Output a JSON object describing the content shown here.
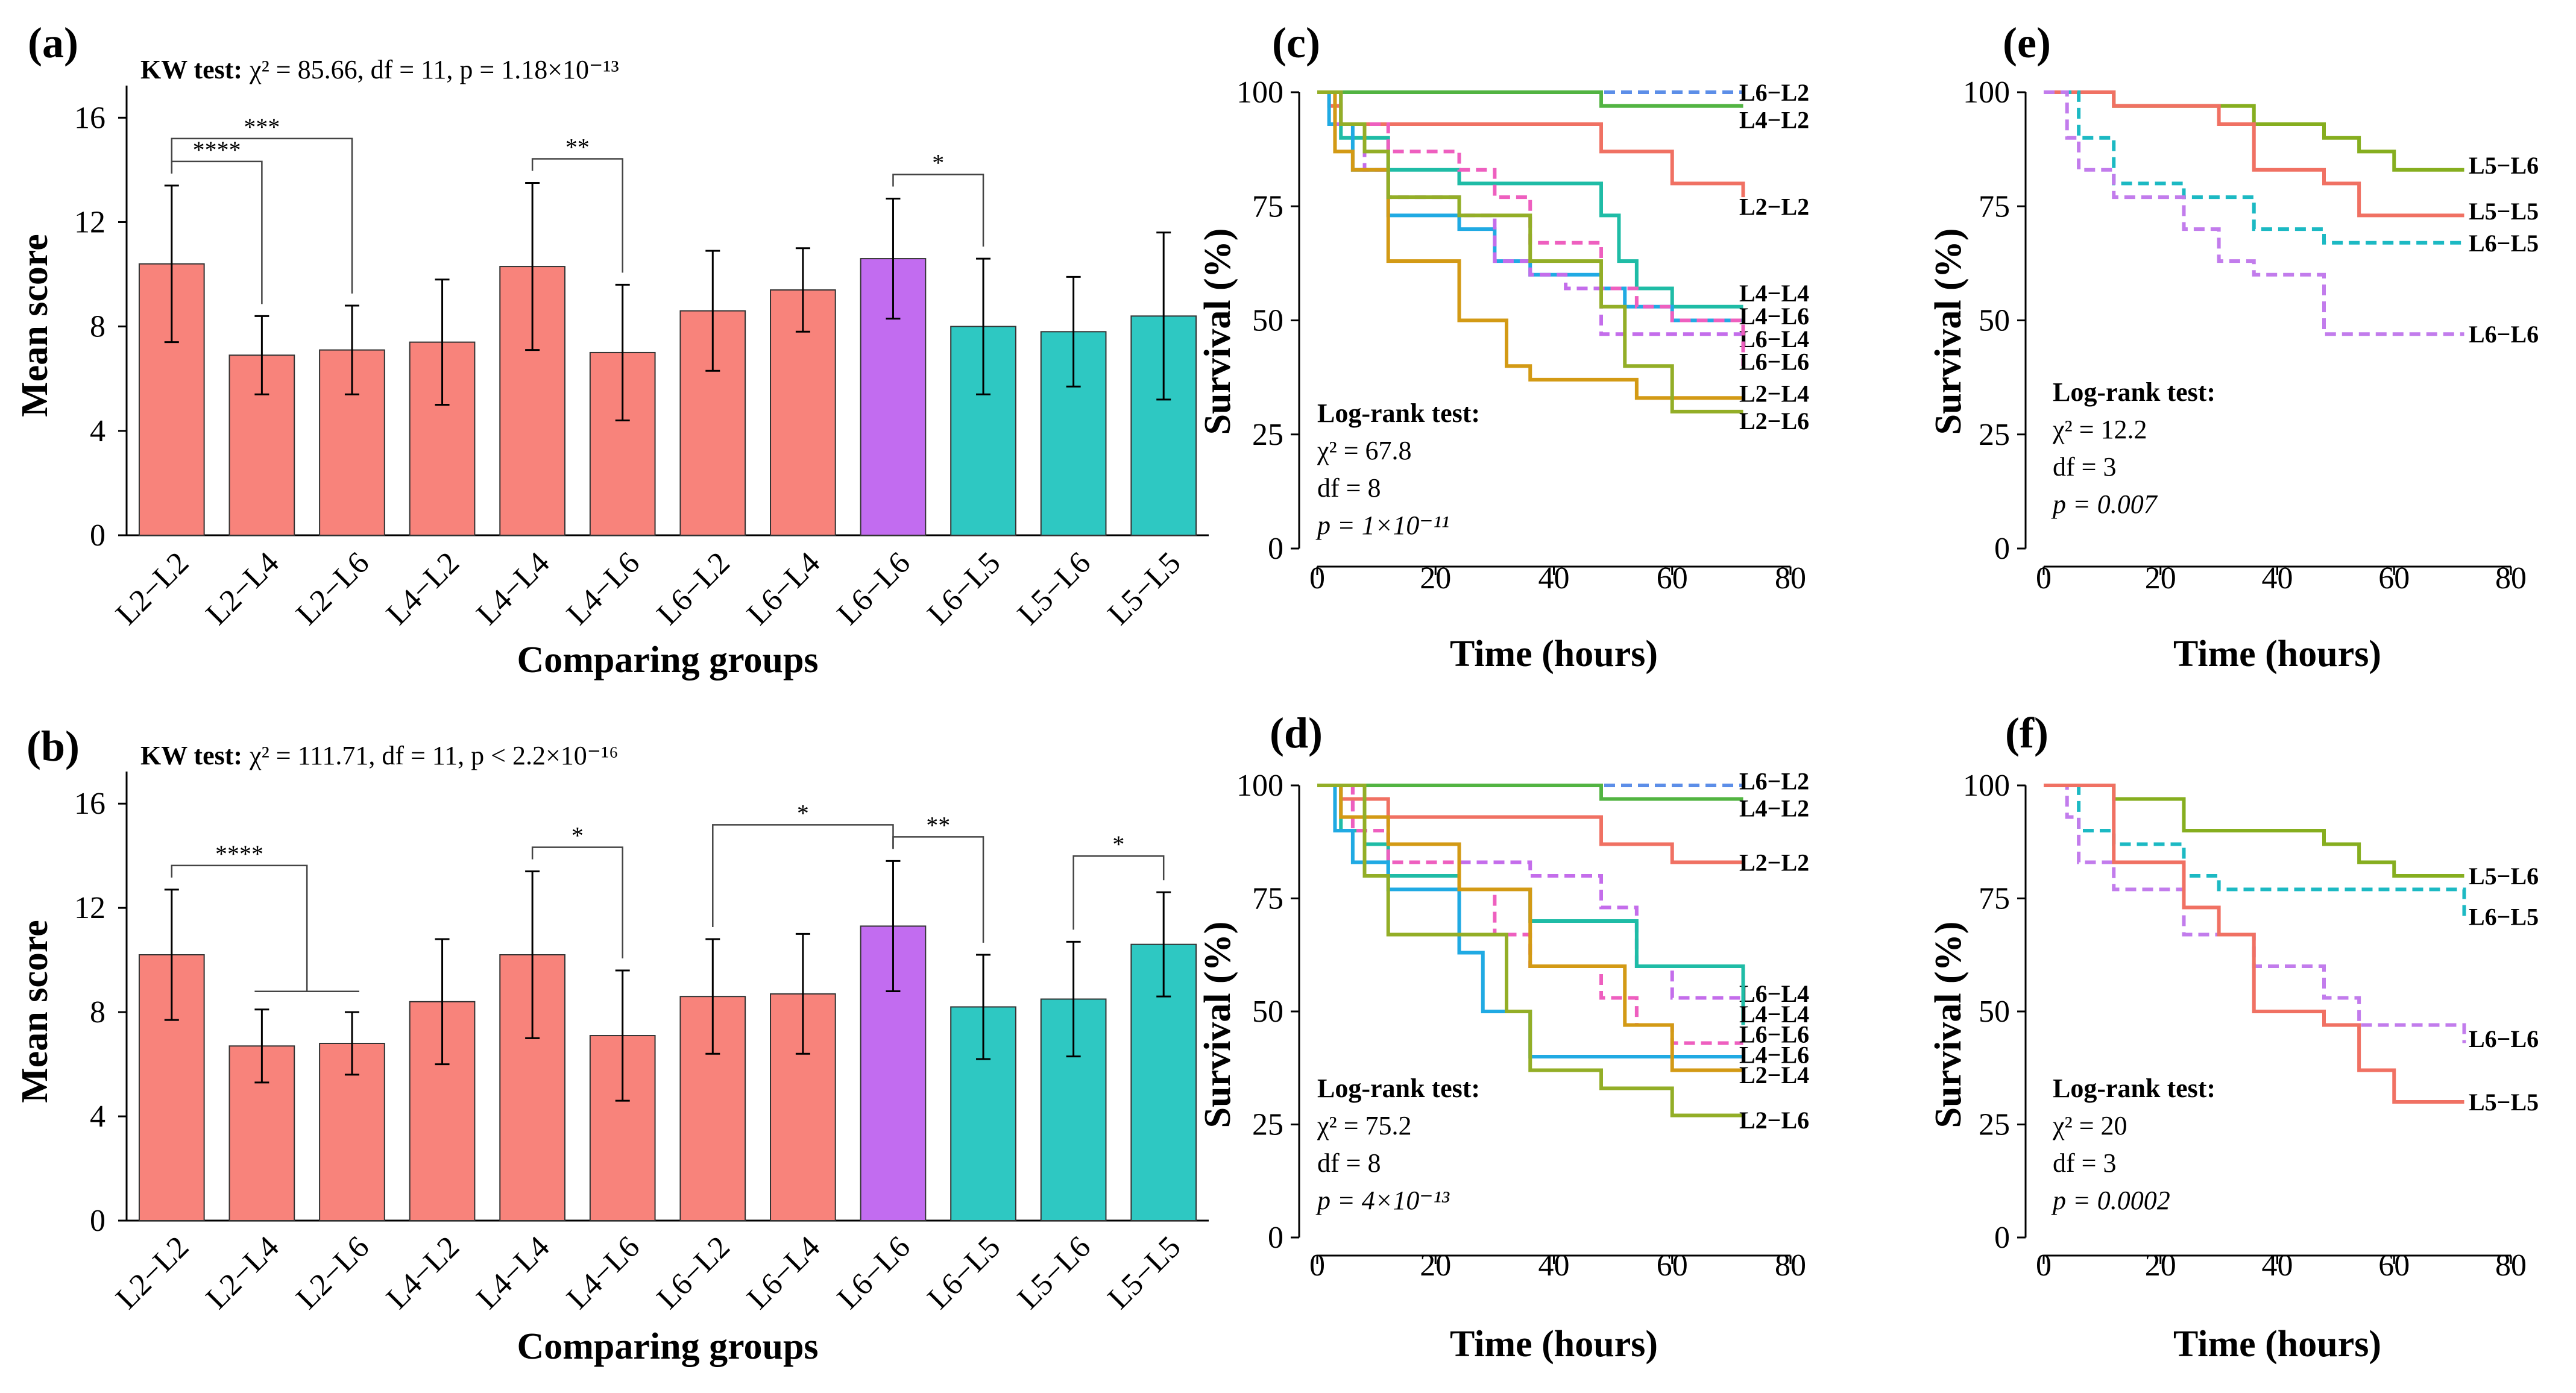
{
  "colors": {
    "pink": "#F8837B",
    "purple": "#C26CF0",
    "teal": "#2EC8C2",
    "L6-L2": "#5C8EE8",
    "L4-L2": "#52B442",
    "L2-L2": "#F07163",
    "L4-L4": "#1FBCA6",
    "L4-L6": "#20AAE3",
    "L6-L4": "#C46DEB",
    "L6-L6": "#EE5FBF",
    "L2-L4": "#D39A15",
    "L2-L6": "#93AE27",
    "L5-L6": "#86AE1F",
    "L5-L5": "#F07163",
    "L6-L5b": "#1CB9C3",
    "L6-L6b": "#C27CEC"
  },
  "chart_data": [
    {
      "id": "a",
      "panel_label": "(a)",
      "type": "bar",
      "stat_prefix": "KW test:",
      "stat_rest": "χ² = 85.66, df = 11, p = 1.18×10⁻¹³",
      "xlabel": "Comparing groups",
      "ylabel": "Mean score",
      "ylim": [
        0,
        17
      ],
      "yticks": [
        "0",
        "4",
        "8",
        "12",
        "16"
      ],
      "categories": [
        "L2−L2",
        "L2−L4",
        "L2−L6",
        "L4−L2",
        "L4−L4",
        "L4−L6",
        "L6−L2",
        "L6−L4",
        "L6−L6",
        "L6−L5",
        "L5−L6",
        "L5−L5"
      ],
      "values": [
        10.4,
        6.9,
        7.1,
        7.4,
        10.3,
        7.0,
        8.6,
        9.4,
        10.6,
        8.0,
        7.8,
        8.4
      ],
      "errors": [
        3.0,
        1.5,
        1.7,
        2.4,
        3.2,
        2.6,
        2.3,
        1.6,
        2.3,
        2.6,
        2.1,
        3.2
      ],
      "bar_colors": [
        "pink",
        "pink",
        "pink",
        "pink",
        "pink",
        "pink",
        "pink",
        "pink",
        "purple",
        "teal",
        "teal",
        "teal"
      ],
      "brackets": [
        {
          "from": 0,
          "to": 1,
          "label": "****"
        },
        {
          "from": 0,
          "to": 2,
          "label": "***"
        },
        {
          "from": 4,
          "to": 5,
          "label": "**"
        },
        {
          "from": 8,
          "to": 9,
          "label": "*"
        }
      ]
    },
    {
      "id": "b",
      "panel_label": "(b)",
      "type": "bar",
      "stat_prefix": "KW test:",
      "stat_rest": "χ² = 111.71, df = 11, p < 2.2×10⁻¹⁶",
      "xlabel": "Comparing groups",
      "ylabel": "Mean score",
      "ylim": [
        0,
        17
      ],
      "yticks": [
        "0",
        "4",
        "8",
        "12",
        "16"
      ],
      "categories": [
        "L2−L2",
        "L2−L4",
        "L2−L6",
        "L4−L2",
        "L4−L4",
        "L4−L6",
        "L6−L2",
        "L6−L4",
        "L6−L6",
        "L6−L5",
        "L5−L6",
        "L5−L5"
      ],
      "values": [
        10.2,
        6.7,
        6.8,
        8.4,
        10.2,
        7.1,
        8.6,
        8.7,
        11.3,
        8.2,
        8.5,
        10.6
      ],
      "errors": [
        2.5,
        1.4,
        1.2,
        2.4,
        3.2,
        2.5,
        2.2,
        2.3,
        2.5,
        2.0,
        2.2,
        2.0
      ],
      "bar_colors": [
        "pink",
        "pink",
        "pink",
        "pink",
        "pink",
        "pink",
        "pink",
        "pink",
        "purple",
        "teal",
        "teal",
        "teal"
      ],
      "brackets": [
        {
          "from": 0,
          "to_mid": [
            1,
            2
          ],
          "label": "****"
        },
        {
          "from": 4,
          "to": 5,
          "label": "*"
        },
        {
          "from": 6,
          "to": 8,
          "label": "*"
        },
        {
          "from": 8,
          "to": 9,
          "label": "**"
        },
        {
          "from": 10,
          "to": 11,
          "label": "*"
        }
      ]
    },
    {
      "id": "c",
      "panel_label": "(c)",
      "type": "line",
      "xlabel": "Time (hours)",
      "ylabel": "Survival (%)",
      "xlim": [
        0,
        80
      ],
      "ylim": [
        0,
        100
      ],
      "xticks": [
        0,
        20,
        40,
        60,
        80
      ],
      "yticks": [
        0,
        25,
        50,
        75,
        100
      ],
      "test": {
        "title": "Log-rank test:",
        "chi": "χ² = 67.8",
        "df": "df = 8",
        "p": "p = 1×10⁻¹¹"
      },
      "series": [
        {
          "name": "L6−L2",
          "color": "L6-L2",
          "dashed": true,
          "label_y": 100,
          "x": [
            0,
            72
          ],
          "y": [
            100,
            100
          ]
        },
        {
          "name": "L4−L2",
          "color": "L4-L2",
          "dashed": false,
          "label_y": 94,
          "x": [
            0,
            48,
            72
          ],
          "y": [
            100,
            97,
            97
          ]
        },
        {
          "name": "L2−L2",
          "color": "L2-L2",
          "dashed": false,
          "label_y": 75,
          "x": [
            0,
            2,
            4,
            12,
            48,
            60,
            72
          ],
          "y": [
            100,
            97,
            93,
            93,
            87,
            80,
            77
          ]
        },
        {
          "name": "L4−L4",
          "color": "L4-L4",
          "dashed": false,
          "label_y": 56,
          "x": [
            0,
            4,
            12,
            24,
            36,
            48,
            51,
            54,
            60,
            72
          ],
          "y": [
            100,
            90,
            83,
            80,
            80,
            73,
            63,
            57,
            53,
            53
          ]
        },
        {
          "name": "L4−L6",
          "color": "L4-L6",
          "dashed": false,
          "label_y": 51,
          "x": [
            0,
            2,
            6,
            12,
            24,
            30,
            36,
            48,
            52,
            60,
            72
          ],
          "y": [
            100,
            93,
            83,
            73,
            70,
            63,
            60,
            57,
            53,
            50,
            50
          ]
        },
        {
          "name": "L6−L4",
          "color": "L6-L4",
          "dashed": true,
          "label_y": 46,
          "x": [
            0,
            3,
            8,
            12,
            24,
            30,
            36,
            42,
            48,
            60,
            72
          ],
          "y": [
            100,
            93,
            83,
            77,
            73,
            63,
            60,
            57,
            47,
            47,
            47
          ]
        },
        {
          "name": "L6−L6",
          "color": "L6-L6",
          "dashed": true,
          "label_y": 41,
          "x": [
            0,
            4,
            12,
            24,
            30,
            36,
            48,
            54,
            60,
            72
          ],
          "y": [
            100,
            93,
            87,
            83,
            77,
            67,
            57,
            53,
            50,
            40
          ]
        },
        {
          "name": "L2−L4",
          "color": "L2-L4",
          "dashed": false,
          "label_y": 34,
          "x": [
            0,
            3,
            6,
            12,
            24,
            32,
            36,
            48,
            54,
            72
          ],
          "y": [
            100,
            87,
            83,
            63,
            50,
            40,
            37,
            37,
            33,
            33
          ]
        },
        {
          "name": "L2−L6",
          "color": "L2-L6",
          "dashed": false,
          "label_y": 28,
          "x": [
            0,
            4,
            8,
            12,
            24,
            36,
            48,
            52,
            60,
            72
          ],
          "y": [
            100,
            93,
            87,
            77,
            73,
            63,
            53,
            40,
            30,
            30
          ]
        }
      ]
    },
    {
      "id": "d",
      "panel_label": "(d)",
      "type": "line",
      "xlabel": "Time (hours)",
      "ylabel": "Survival (%)",
      "xlim": [
        0,
        80
      ],
      "ylim": [
        0,
        100
      ],
      "xticks": [
        0,
        20,
        40,
        60,
        80
      ],
      "yticks": [
        0,
        25,
        50,
        75,
        100
      ],
      "test": {
        "title": "Log-rank test:",
        "chi": "χ² = 75.2",
        "df": "df = 8",
        "p": "p = 4×10⁻¹³"
      },
      "series": [
        {
          "name": "L6−L2",
          "color": "L6-L2",
          "dashed": true,
          "label_y": 101,
          "x": [
            0,
            72
          ],
          "y": [
            100,
            100
          ]
        },
        {
          "name": "L4−L2",
          "color": "L4-L2",
          "dashed": false,
          "label_y": 95,
          "x": [
            0,
            48,
            72
          ],
          "y": [
            100,
            97,
            97
          ]
        },
        {
          "name": "L2−L2",
          "color": "L2-L2",
          "dashed": false,
          "label_y": 83,
          "x": [
            0,
            4,
            12,
            48,
            60,
            72
          ],
          "y": [
            100,
            97,
            93,
            87,
            83,
            83
          ]
        },
        {
          "name": "L6−L4",
          "color": "L6-L4",
          "dashed": true,
          "label_y": 54,
          "x": [
            0,
            6,
            12,
            24,
            36,
            48,
            54,
            60,
            72
          ],
          "y": [
            100,
            93,
            87,
            83,
            80,
            73,
            60,
            53,
            53
          ]
        },
        {
          "name": "L4−L4",
          "color": "L4-L4",
          "dashed": false,
          "label_y": 49.5,
          "x": [
            0,
            4,
            8,
            12,
            24,
            36,
            48,
            54,
            72
          ],
          "y": [
            100,
            90,
            87,
            80,
            77,
            70,
            70,
            60,
            47
          ]
        },
        {
          "name": "L6−L6",
          "color": "L6-L6",
          "dashed": true,
          "label_y": 45,
          "x": [
            0,
            6,
            12,
            24,
            30,
            36,
            48,
            54,
            60,
            72
          ],
          "y": [
            100,
            90,
            83,
            77,
            67,
            60,
            53,
            47,
            43,
            43
          ]
        },
        {
          "name": "L4−L6",
          "color": "L4-L6",
          "dashed": false,
          "label_y": 40.5,
          "x": [
            0,
            3,
            6,
            12,
            24,
            28,
            36,
            48,
            72
          ],
          "y": [
            100,
            90,
            83,
            77,
            63,
            50,
            40,
            40,
            40
          ]
        },
        {
          "name": "L2−L4",
          "color": "L2-L4",
          "dashed": false,
          "label_y": 36,
          "x": [
            0,
            4,
            12,
            24,
            36,
            48,
            52,
            60,
            72
          ],
          "y": [
            100,
            93,
            87,
            77,
            60,
            60,
            47,
            37,
            37
          ]
        },
        {
          "name": "L2−L6",
          "color": "L2-L6",
          "dashed": false,
          "label_y": 26,
          "x": [
            0,
            8,
            12,
            24,
            32,
            36,
            48,
            54,
            60,
            72
          ],
          "y": [
            100,
            80,
            67,
            67,
            50,
            37,
            33,
            33,
            27,
            27
          ]
        }
      ]
    },
    {
      "id": "e",
      "panel_label": "(e)",
      "type": "line",
      "xlabel": "Time (hours)",
      "ylabel": "Survival (%)",
      "xlim": [
        0,
        80
      ],
      "ylim": [
        0,
        100
      ],
      "xticks": [
        0,
        20,
        40,
        60,
        80
      ],
      "yticks": [
        0,
        25,
        50,
        75,
        100
      ],
      "test": {
        "title": "Log-rank test:",
        "chi": "χ² = 12.2",
        "df": "df = 3",
        "p": "p = 0.007"
      },
      "series": [
        {
          "name": "L5−L6",
          "color": "L5-L6",
          "dashed": false,
          "label_y": 84,
          "x": [
            0,
            12,
            36,
            48,
            54,
            60,
            72
          ],
          "y": [
            100,
            97,
            93,
            90,
            87,
            83,
            83
          ]
        },
        {
          "name": "L5−L5",
          "color": "L5-L5",
          "dashed": false,
          "label_y": 74,
          "x": [
            0,
            12,
            30,
            36,
            48,
            54,
            72
          ],
          "y": [
            100,
            97,
            93,
            83,
            80,
            73,
            73
          ]
        },
        {
          "name": "L6−L5",
          "color": "L6-L5b",
          "dashed": true,
          "label_y": 67,
          "x": [
            0,
            6,
            12,
            24,
            36,
            48,
            72
          ],
          "y": [
            100,
            90,
            80,
            77,
            70,
            67,
            67
          ]
        },
        {
          "name": "L6−L6",
          "color": "L6-L6b",
          "dashed": true,
          "label_y": 47,
          "x": [
            0,
            4,
            6,
            12,
            24,
            30,
            36,
            48,
            72
          ],
          "y": [
            100,
            90,
            83,
            77,
            70,
            63,
            60,
            47,
            47
          ]
        }
      ]
    },
    {
      "id": "f",
      "panel_label": "(f)",
      "type": "line",
      "xlabel": "Time (hours)",
      "ylabel": "Survival (%)",
      "xlim": [
        0,
        80
      ],
      "ylim": [
        0,
        100
      ],
      "xticks": [
        0,
        20,
        40,
        60,
        80
      ],
      "yticks": [
        0,
        25,
        50,
        75,
        100
      ],
      "test": {
        "title": "Log-rank test:",
        "chi": "χ² = 20",
        "df": "df = 3",
        "p": "p = 0.0002"
      },
      "series": [
        {
          "name": "L5−L6",
          "color": "L5-L6",
          "dashed": false,
          "label_y": 80,
          "x": [
            0,
            12,
            24,
            48,
            54,
            60,
            72
          ],
          "y": [
            100,
            97,
            90,
            87,
            83,
            80,
            80
          ]
        },
        {
          "name": "L6−L5",
          "color": "L6-L5b",
          "dashed": true,
          "label_y": 71,
          "x": [
            0,
            6,
            12,
            24,
            30,
            72
          ],
          "y": [
            100,
            90,
            87,
            80,
            77,
            71
          ]
        },
        {
          "name": "L6−L6",
          "color": "L6-L6b",
          "dashed": true,
          "label_y": 44,
          "x": [
            0,
            4,
            6,
            12,
            24,
            36,
            48,
            54,
            72
          ],
          "y": [
            100,
            93,
            83,
            77,
            67,
            60,
            53,
            47,
            43
          ]
        },
        {
          "name": "L5−L5",
          "color": "L5-L5",
          "dashed": false,
          "label_y": 30,
          "x": [
            0,
            12,
            24,
            30,
            36,
            48,
            54,
            60,
            72
          ],
          "y": [
            100,
            83,
            73,
            67,
            50,
            47,
            37,
            30,
            30
          ]
        }
      ]
    }
  ]
}
